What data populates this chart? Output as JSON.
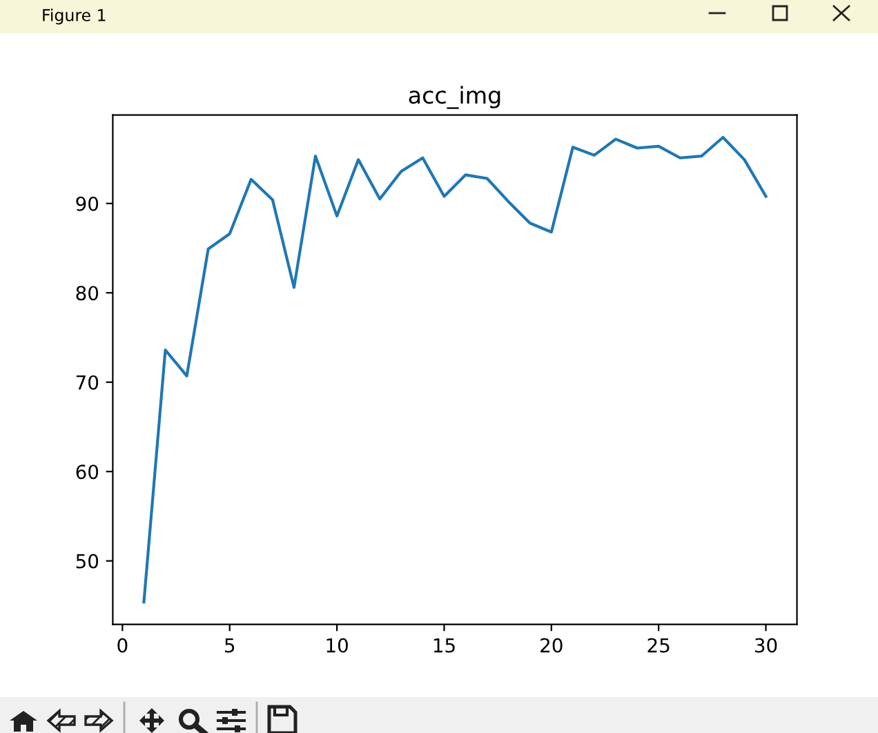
{
  "chart_data": {
    "type": "line",
    "title": "acc_img",
    "x": [
      1,
      2,
      3,
      4,
      5,
      6,
      7,
      8,
      9,
      10,
      11,
      12,
      13,
      14,
      15,
      16,
      17,
      18,
      19,
      20,
      21,
      22,
      23,
      24,
      25,
      26,
      27,
      28,
      29,
      30
    ],
    "series": [
      {
        "color": "#1f77b4",
        "values": [
          45.4,
          73.6,
          70.7,
          84.9,
          86.6,
          92.7,
          90.4,
          80.6,
          95.3,
          88.6,
          94.9,
          90.5,
          93.6,
          95.1,
          90.8,
          93.2,
          92.8,
          90.2,
          87.8,
          86.8,
          96.3,
          95.4,
          97.2,
          96.2,
          96.4,
          95.1,
          95.3,
          97.4,
          94.9,
          90.8
        ]
      }
    ],
    "xlim": [
      -0.45,
      31.45
    ],
    "xticks": [
      0,
      5,
      10,
      15,
      20,
      25,
      30
    ],
    "ylim": [
      42.9,
      99.9
    ],
    "yticks": [
      50,
      60,
      70,
      80,
      90
    ],
    "grid": false,
    "marker": "none",
    "line_style": "solid",
    "annotations": [
      "Figure 1"
    ]
  }
}
